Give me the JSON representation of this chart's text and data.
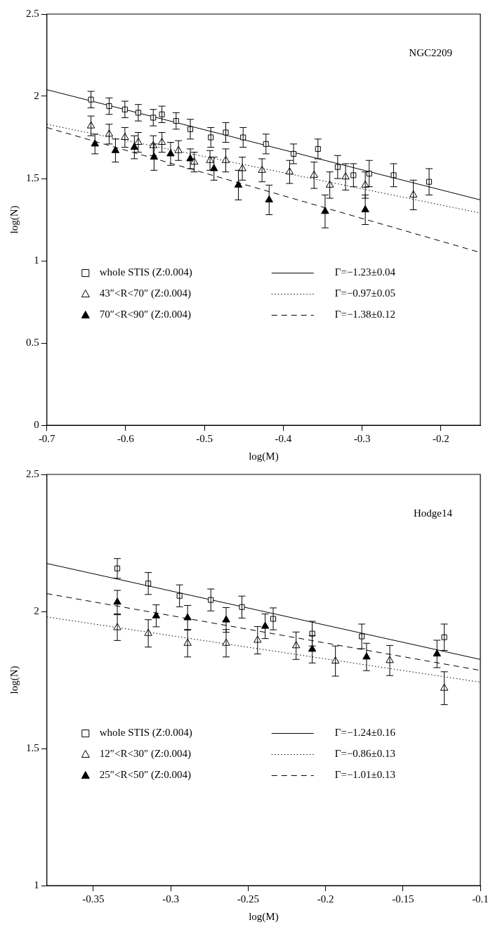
{
  "chart_data": [
    {
      "type": "scatter",
      "xlabel": "log(M)",
      "ylabel": "log(N)",
      "xlim": [
        -0.7,
        -0.15
      ],
      "ylim": [
        0,
        2.5
      ],
      "xticks": [
        -0.7,
        -0.6,
        -0.5,
        -0.4,
        -0.3,
        -0.2
      ],
      "yticks": [
        0,
        0.5,
        1,
        1.5,
        2,
        2.5
      ],
      "legend": "bottom",
      "annotations": [
        "NGC2209"
      ],
      "series": [
        {
          "name": "whole STIS (Z:0.004)",
          "marker": "square",
          "color": "#000000",
          "x": [
            -0.644,
            -0.621,
            -0.601,
            -0.584,
            -0.565,
            -0.554,
            -0.536,
            -0.518,
            -0.492,
            -0.473,
            -0.451,
            -0.422,
            -0.387,
            -0.356,
            -0.331,
            -0.311,
            -0.291,
            -0.26,
            -0.215
          ],
          "values": [
            1.98,
            1.94,
            1.92,
            1.9,
            1.87,
            1.89,
            1.85,
            1.8,
            1.75,
            1.78,
            1.75,
            1.71,
            1.65,
            1.68,
            1.57,
            1.52,
            1.53,
            1.52,
            1.48
          ],
          "errors": [
            0.05,
            0.05,
            0.05,
            0.05,
            0.05,
            0.05,
            0.05,
            0.06,
            0.06,
            0.06,
            0.06,
            0.06,
            0.06,
            0.06,
            0.07,
            0.07,
            0.08,
            0.07,
            0.08
          ]
        },
        {
          "name": "43″<R<70″ (Z:0.004)",
          "marker": "triangle",
          "color": "#000000",
          "x": [
            -0.644,
            -0.621,
            -0.601,
            -0.584,
            -0.565,
            -0.554,
            -0.533,
            -0.513,
            -0.493,
            -0.473,
            -0.452,
            -0.427,
            -0.392,
            -0.361,
            -0.341,
            -0.321,
            -0.296,
            -0.235
          ],
          "values": [
            1.82,
            1.77,
            1.75,
            1.72,
            1.7,
            1.72,
            1.67,
            1.6,
            1.61,
            1.61,
            1.56,
            1.55,
            1.54,
            1.52,
            1.46,
            1.51,
            1.46,
            1.4
          ],
          "errors": [
            0.06,
            0.06,
            0.06,
            0.06,
            0.06,
            0.06,
            0.06,
            0.06,
            0.06,
            0.07,
            0.07,
            0.07,
            0.07,
            0.08,
            0.08,
            0.08,
            0.08,
            0.09
          ]
        },
        {
          "name": "70″<R<90″ (Z:0.004)",
          "marker": "triangle",
          "color": "#000000",
          "x": [
            -0.639,
            -0.613,
            -0.589,
            -0.564,
            -0.543,
            -0.518,
            -0.488,
            -0.457,
            -0.418,
            -0.347,
            -0.296
          ],
          "values": [
            1.71,
            1.67,
            1.69,
            1.63,
            1.65,
            1.62,
            1.56,
            1.46,
            1.37,
            1.3,
            1.31
          ],
          "errors": [
            0.06,
            0.07,
            0.07,
            0.08,
            0.07,
            0.06,
            0.07,
            0.09,
            0.09,
            0.1,
            0.09
          ]
        },
        {
          "name": "Γ=−1.23±0.04",
          "type": "line",
          "line_style": "solid",
          "color": "#000000",
          "x": [
            -0.7,
            -0.15
          ],
          "values": [
            2.04,
            1.37
          ]
        },
        {
          "name": "Γ=−0.97±0.05",
          "type": "line",
          "line_style": "dotted",
          "color": "#000000",
          "x": [
            -0.7,
            -0.15
          ],
          "values": [
            1.83,
            1.29
          ]
        },
        {
          "name": "Γ=−1.38±0.12",
          "type": "line",
          "line_style": "dashed",
          "color": "#000000",
          "x": [
            -0.7,
            -0.15
          ],
          "values": [
            1.81,
            1.05
          ]
        }
      ]
    },
    {
      "type": "scatter",
      "xlabel": "log(M)",
      "ylabel": "log(N)",
      "xlim": [
        -0.38,
        -0.1
      ],
      "ylim": [
        1,
        2.5
      ],
      "xticks": [
        -0.35,
        -0.3,
        -0.25,
        -0.2,
        -0.15,
        -0.1
      ],
      "yticks": [
        1,
        1.5,
        2,
        2.5
      ],
      "legend": "bottom",
      "annotations": [
        "Hodge14"
      ],
      "series": [
        {
          "name": "whole STIS (Z:0.004)",
          "marker": "square",
          "color": "#000000",
          "x": [
            -0.3345,
            -0.3145,
            -0.2943,
            -0.2741,
            -0.254,
            -0.2338,
            -0.2086,
            -0.1766,
            -0.1233
          ],
          "values": [
            2.157,
            2.102,
            2.057,
            2.042,
            2.016,
            1.973,
            1.919,
            1.909,
            1.906
          ],
          "errors": [
            0.036,
            0.04,
            0.04,
            0.04,
            0.04,
            0.04,
            0.045,
            0.045,
            0.048
          ]
        },
        {
          "name": "12″<R<30″ (Z:0.004)",
          "marker": "triangle",
          "color": "#000000",
          "x": [
            -0.3345,
            -0.3145,
            -0.2891,
            -0.2642,
            -0.2439,
            -0.219,
            -0.1936,
            -0.1585,
            -0.1233
          ],
          "values": [
            1.941,
            1.92,
            1.884,
            1.884,
            1.895,
            1.875,
            1.819,
            1.821,
            1.72
          ],
          "errors": [
            0.047,
            0.05,
            0.05,
            0.05,
            0.05,
            0.05,
            0.055,
            0.055,
            0.06
          ]
        },
        {
          "name": "25″<R<50″ (Z:0.004)",
          "marker": "triangle",
          "color": "#000000",
          "x": [
            -0.3345,
            -0.3094,
            -0.2891,
            -0.2642,
            -0.239,
            -0.2086,
            -0.1735,
            -0.128
          ],
          "values": [
            2.034,
            1.984,
            1.977,
            1.969,
            1.946,
            1.862,
            1.834,
            1.845
          ],
          "errors": [
            0.043,
            0.04,
            0.045,
            0.045,
            0.045,
            0.05,
            0.05,
            0.05
          ]
        },
        {
          "name": "Γ=−1.24±0.16",
          "type": "line",
          "line_style": "solid",
          "color": "#000000",
          "x": [
            -0.38,
            -0.1
          ],
          "values": [
            2.175,
            1.825
          ]
        },
        {
          "name": "Γ=−0.86±0.13",
          "type": "line",
          "line_style": "dotted",
          "color": "#000000",
          "x": [
            -0.38,
            -0.1
          ],
          "values": [
            1.98,
            1.742
          ]
        },
        {
          "name": "Γ=−1.01±0.13",
          "type": "line",
          "line_style": "dashed",
          "color": "#000000",
          "x": [
            -0.38,
            -0.1
          ],
          "values": [
            2.065,
            1.785
          ]
        }
      ]
    }
  ]
}
